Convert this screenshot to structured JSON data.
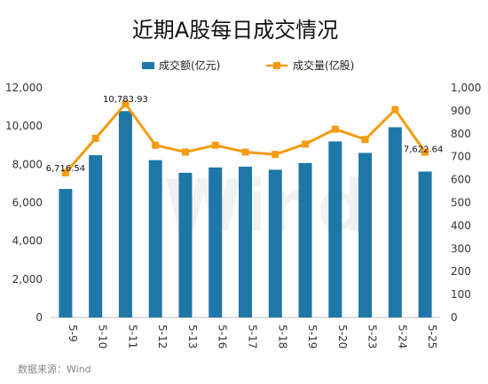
{
  "chart_data": {
    "type": "bar+line",
    "title": "近期A股每日成交情况",
    "source": "数据来源：Wind",
    "watermark": "Wind",
    "categories": [
      "5-9",
      "5-10",
      "5-11",
      "5-12",
      "5-13",
      "5-16",
      "5-17",
      "5-18",
      "5-19",
      "5-20",
      "5-23",
      "5-24",
      "5-25"
    ],
    "series": [
      {
        "name": "成交额(亿元)",
        "type": "bar",
        "axis": "left",
        "color": "#1f77a8",
        "values": [
          6716.54,
          8480,
          10783.93,
          8220,
          7560,
          7840,
          7880,
          7720,
          8070,
          9200,
          8600,
          9940,
          7622.64
        ]
      },
      {
        "name": "成交量(亿股)",
        "type": "line",
        "axis": "right",
        "color": "#f39c12",
        "values": [
          630,
          780,
          930,
          750,
          720,
          750,
          720,
          710,
          755,
          820,
          775,
          905,
          720
        ]
      }
    ],
    "data_labels": [
      {
        "series": 0,
        "index": 0,
        "text": "6,716.54"
      },
      {
        "series": 0,
        "index": 2,
        "text": "10,783.93"
      },
      {
        "series": 0,
        "index": 12,
        "text": "7,622.64"
      }
    ],
    "y_left": {
      "min": 0,
      "max": 12000,
      "ticks": [
        "0",
        "2,000",
        "4,000",
        "6,000",
        "8,000",
        "10,000",
        "12,000"
      ]
    },
    "y_right": {
      "min": 0,
      "max": 1000,
      "ticks": [
        "0",
        "100",
        "200",
        "300",
        "400",
        "500",
        "600",
        "700",
        "800",
        "900",
        "1,000"
      ]
    },
    "legend_position": "top-center",
    "grid": false
  }
}
